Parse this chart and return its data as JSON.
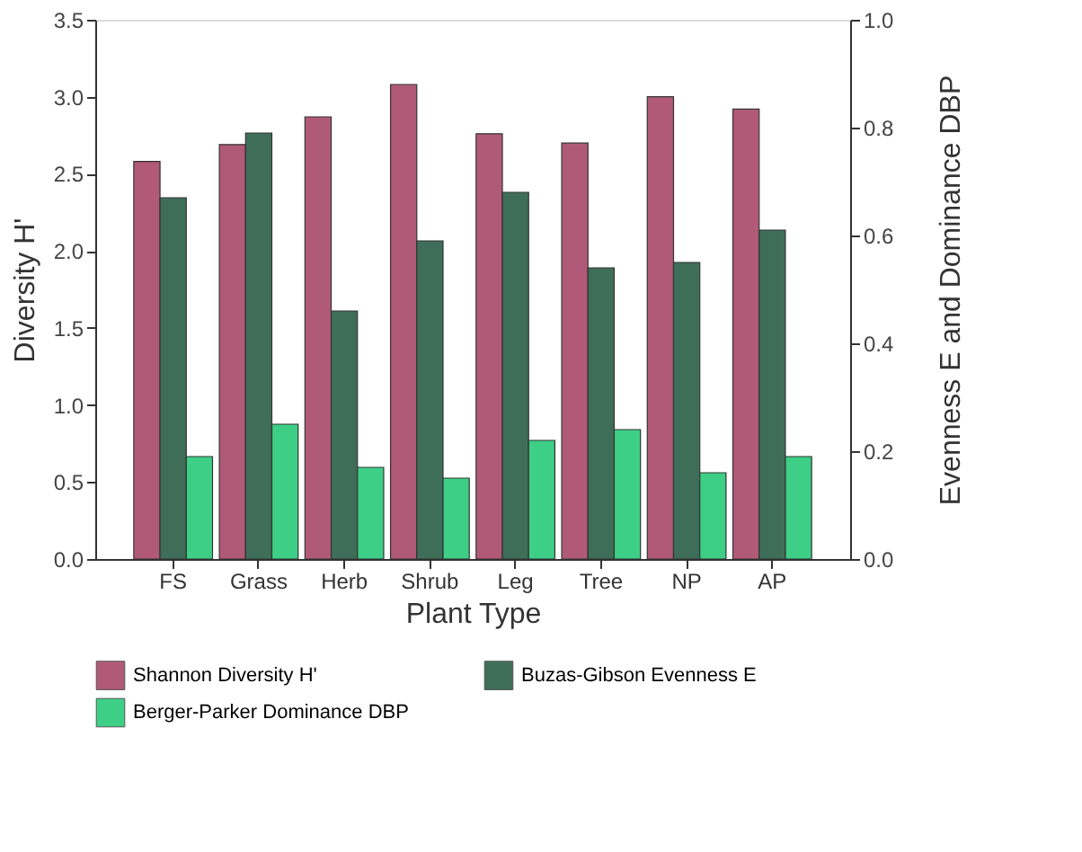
{
  "chart_data": {
    "type": "bar",
    "xlabel": "Plant Type",
    "ylabel": "Diversity H'",
    "y2label": "Evenness E and Dominance DBP",
    "categories": [
      "FS",
      "Grass",
      "Herb",
      "Shrub",
      "Leg",
      "Tree",
      "NP",
      "AP"
    ],
    "series": [
      {
        "name": "Shannon Diversity H'",
        "color": "#b05a78",
        "values": [
          2.58,
          2.69,
          2.87,
          3.08,
          2.76,
          2.7,
          3.0,
          2.92
        ]
      },
      {
        "name": "Buzas-Gibson Evenness E",
        "color": "#3f6e58",
        "axis": "y2",
        "values": [
          0.67,
          0.79,
          0.46,
          0.59,
          0.68,
          0.54,
          0.55,
          0.61
        ]
      },
      {
        "name": "Berger-Parker Dominance DBP",
        "color": "#3ecf86",
        "axis": "y2",
        "values": [
          0.19,
          0.25,
          0.17,
          0.15,
          0.22,
          0.24,
          0.16,
          0.19
        ]
      }
    ],
    "ylim": [
      0,
      3.5
    ],
    "yticks": [
      {
        "value": 0,
        "label": "0.0"
      },
      0.5,
      {
        "value": 1,
        "label": "1.0"
      },
      1.5,
      {
        "value": 2,
        "label": "2.0"
      },
      2.5,
      {
        "value": 3,
        "label": "3.0"
      },
      3.5
    ],
    "y2lim": [
      0,
      1.0
    ],
    "y2ticks": [
      {
        "value": 0,
        "label": "0.0"
      },
      0.2,
      0.4,
      0.6,
      0.8,
      {
        "value": 1,
        "label": "1.0"
      }
    ],
    "grid": false,
    "legend": "bottom"
  }
}
